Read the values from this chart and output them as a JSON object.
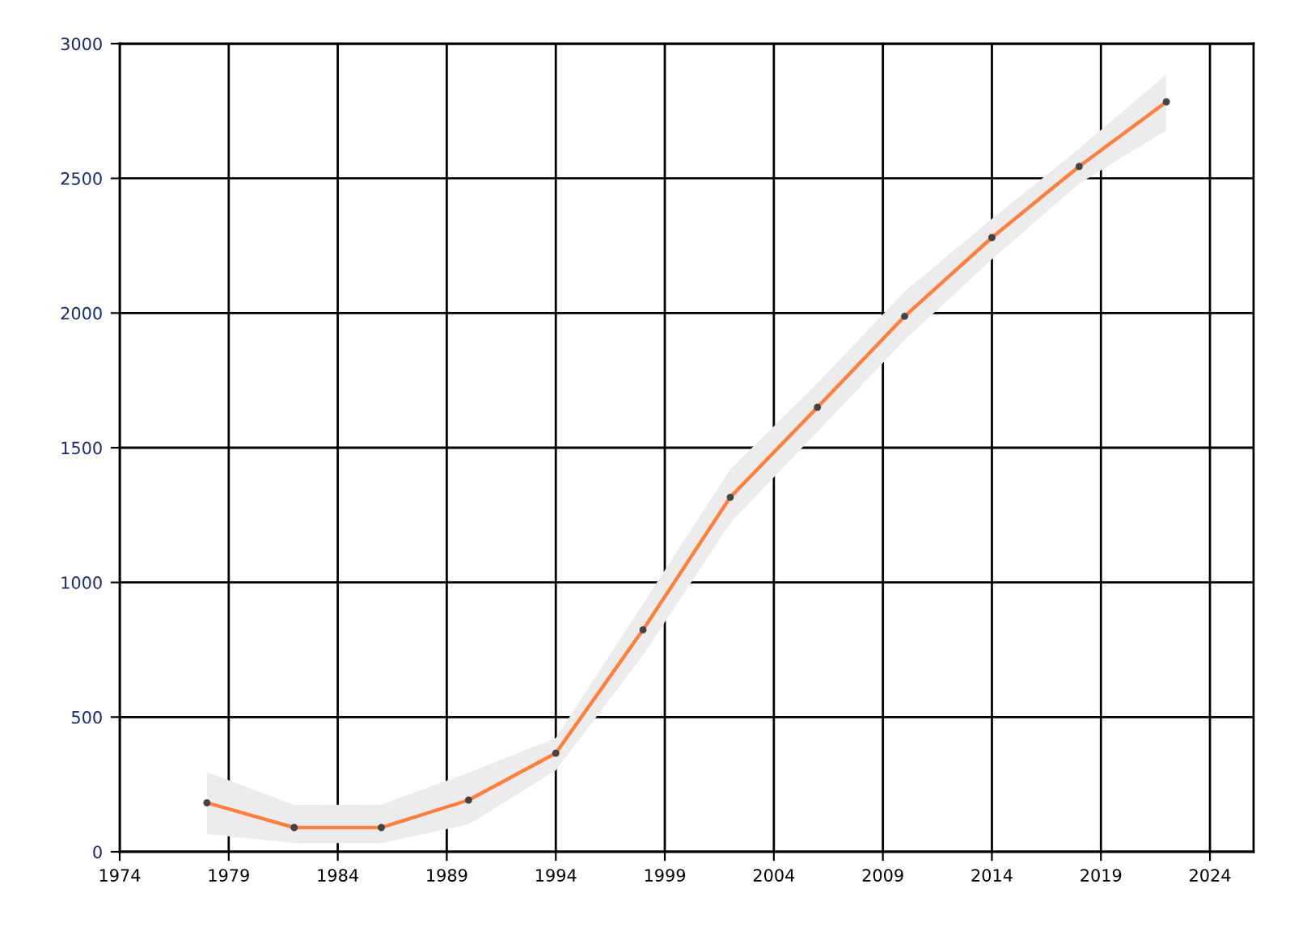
{
  "chart_data": {
    "type": "line",
    "x": [
      1978,
      1982,
      1986,
      1990,
      1994,
      1998,
      2002,
      2006,
      2010,
      2014,
      2018,
      2022
    ],
    "series": [
      {
        "color": "#ff7f3f",
        "values": [
          182,
          90,
          90,
          192,
          366,
          824,
          1316,
          1650,
          1988,
          2280,
          2544,
          2784
        ],
        "lower": [
          66,
          32,
          32,
          102,
          302,
          730,
          1220,
          1560,
          1900,
          2200,
          2480,
          2678
        ],
        "upper": [
          296,
          174,
          175,
          294,
          422,
          920,
          1420,
          1740,
          2080,
          2350,
          2610,
          2886
        ]
      }
    ],
    "xlim": [
      1974,
      2026
    ],
    "xticks": [
      1974,
      1979,
      1984,
      1989,
      1994,
      1999,
      2004,
      2009,
      2014,
      2019,
      2024
    ],
    "ylim": [
      0,
      3000
    ],
    "yticks": [
      0,
      500,
      1000,
      1500,
      2000,
      2500,
      3000
    ],
    "grid": true,
    "marker": "circle",
    "line_style": "solid"
  }
}
